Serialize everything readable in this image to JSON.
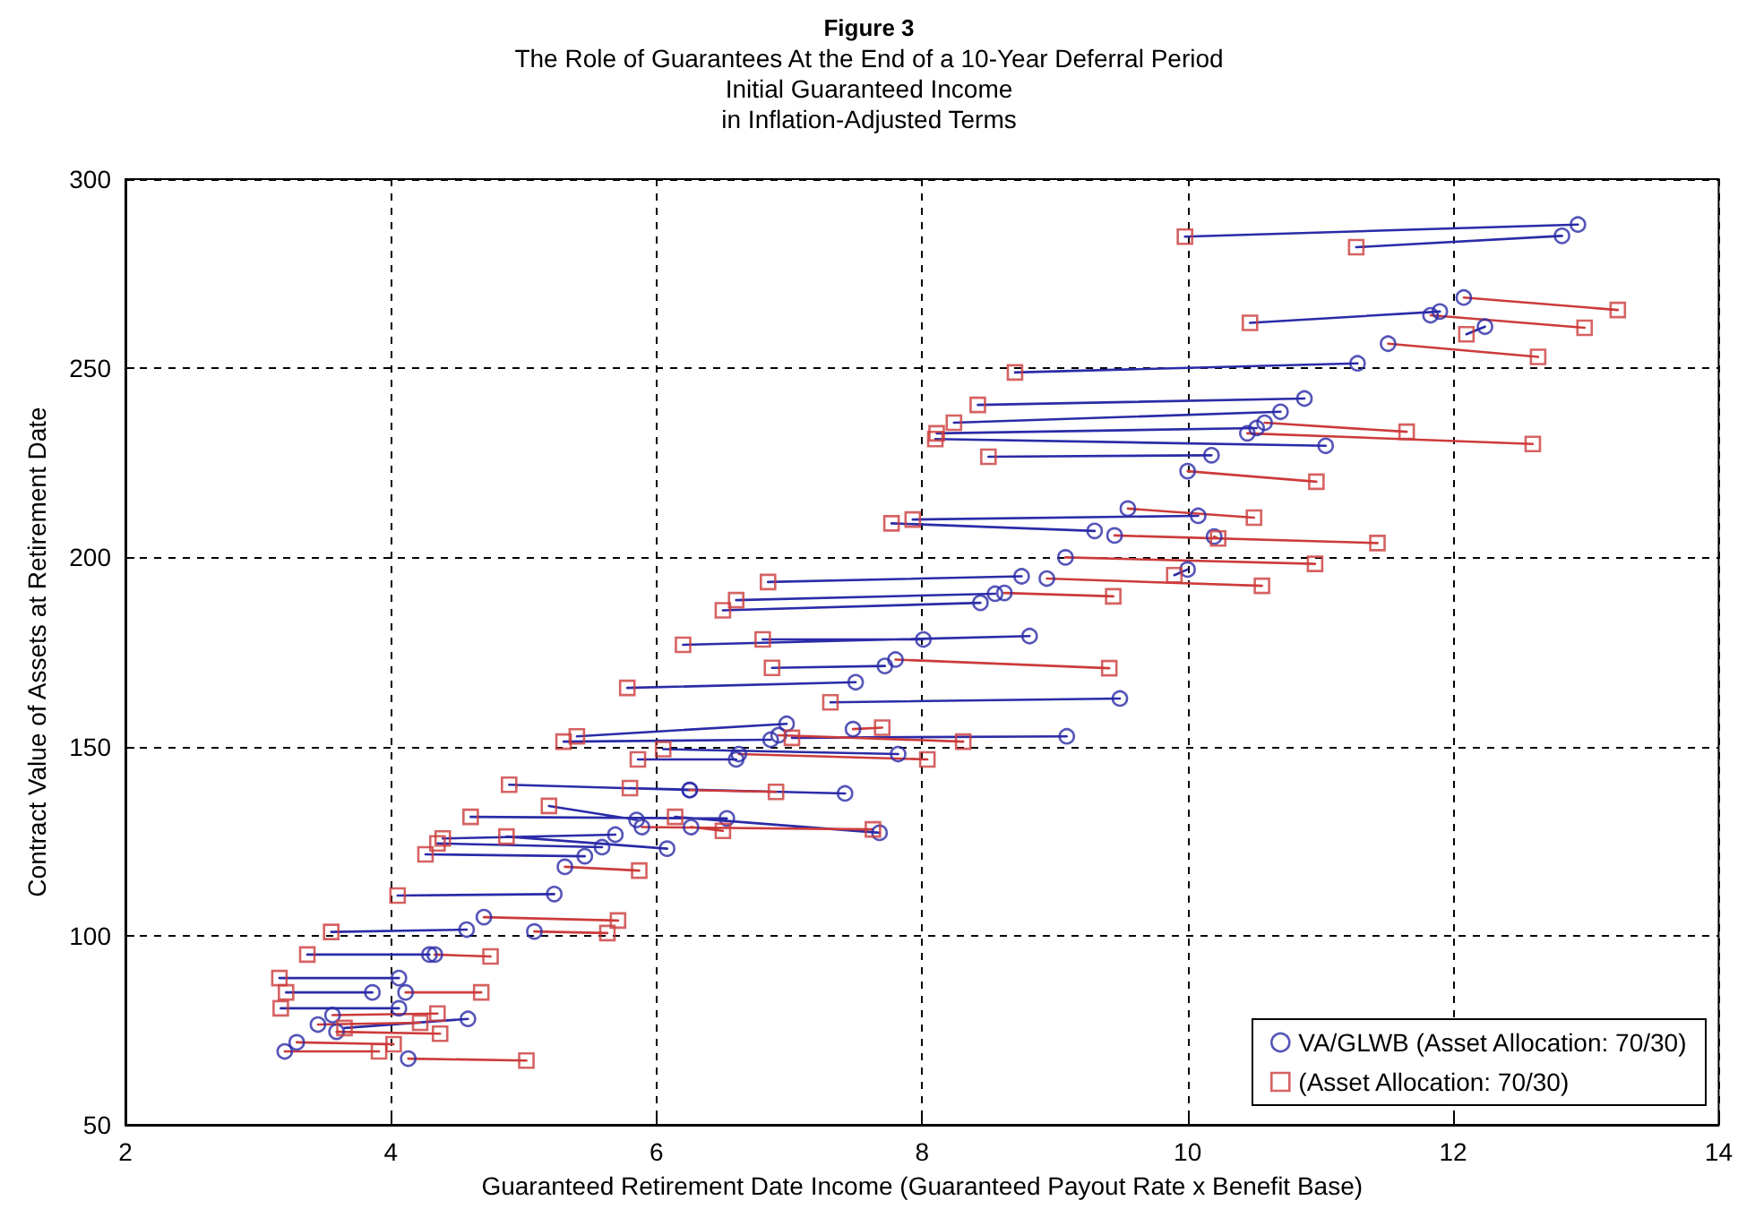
{
  "chart_data": {
    "type": "scatter",
    "title": "Figure 3",
    "subtitle": "The Role of Guarantees At the End of a 10-Year Deferral Period\nInitial Guaranteed Income\nin Inflation-Adjusted Terms",
    "xlabel": "Guaranteed Retirement Date Income (Guaranteed Payout Rate x Benefit Base)",
    "ylabel": "Contract Value of Assets at Retirement Date",
    "xlim": [
      2,
      14
    ],
    "xticks": [
      2,
      4,
      6,
      8,
      10,
      12,
      14
    ],
    "ylim": [
      50,
      300
    ],
    "yticks": [
      50,
      100,
      150,
      200,
      250,
      300
    ],
    "grid": true,
    "legend": "bottom right",
    "line_style": "solid",
    "series": [
      {
        "type": "line",
        "color": "#2b2ba8",
        "marker": "none",
        "x": [
          9.98,
          12.94,
          null,
          11.27,
          12.82,
          null,
          10.47,
          11.9,
          null,
          12.1,
          12.24,
          null,
          8.7,
          11.28,
          null,
          8.42,
          10.88,
          null,
          8.24,
          10.7,
          null,
          8.11,
          10.52,
          null,
          8.1,
          11.04,
          null,
          8.5,
          10.18,
          null,
          7.93,
          10.08,
          null,
          7.77,
          9.3,
          null,
          9.9,
          10.0,
          null,
          6.84,
          8.75,
          null,
          6.6,
          8.55,
          null,
          6.5,
          8.44,
          null,
          6.8,
          8.01,
          null,
          6.2,
          8.81,
          null,
          6.87,
          7.72,
          null,
          5.78,
          7.5,
          null,
          7.31,
          9.49,
          null,
          5.3,
          6.86,
          null,
          5.4,
          6.98,
          null,
          7.02,
          9.09,
          null,
          6.05,
          7.82,
          null,
          5.86,
          6.6,
          null,
          4.89,
          6.25,
          null,
          5.8,
          7.42,
          null,
          5.19,
          5.85,
          null,
          4.6,
          6.53,
          null,
          6.14,
          7.68,
          null,
          4.39,
          5.69,
          null,
          4.87,
          6.08,
          null,
          4.35,
          5.59,
          null,
          4.26,
          5.46,
          null,
          4.05,
          5.23,
          null,
          3.55,
          4.57,
          null,
          3.37,
          4.29,
          null,
          3.16,
          4.06,
          null,
          3.21,
          3.86,
          null,
          3.17,
          4.06,
          null,
          3.65,
          4.58
        ],
        "values": [
          284.8,
          288,
          null,
          282,
          285,
          null,
          262,
          265,
          null,
          259,
          261,
          null,
          248.9,
          251.3,
          null,
          240.3,
          242,
          null,
          235.6,
          238.5,
          null,
          232.8,
          234.2,
          null,
          231.3,
          229.5,
          null,
          226.6,
          227,
          null,
          210,
          211,
          null,
          209,
          207,
          null,
          195.3,
          196.8,
          null,
          193.5,
          195,
          null,
          188.7,
          190.4,
          null,
          186,
          188,
          null,
          178.3,
          178.3,
          null,
          176.9,
          179.2,
          null,
          170.8,
          171.3,
          null,
          165.5,
          167,
          null,
          161.7,
          162.7,
          null,
          151.3,
          151.8,
          null,
          152.7,
          156,
          null,
          152.3,
          152.7,
          null,
          149.3,
          148,
          null,
          146.6,
          146.6,
          null,
          139.9,
          138.5,
          null,
          139,
          137.6,
          null,
          134.3,
          130.6,
          null,
          131.4,
          131,
          null,
          131.4,
          127.2,
          null,
          125.7,
          126.7,
          null,
          126.2,
          123,
          null,
          124.4,
          123.4,
          null,
          121.5,
          121,
          null,
          110.6,
          111,
          null,
          101,
          101.6,
          null,
          95,
          95,
          null,
          88.8,
          88.8,
          null,
          85,
          85,
          null,
          80.8,
          80.8,
          null,
          75.6,
          78
        ]
      },
      {
        "type": "line",
        "color": "#cc3b3b",
        "marker": "none",
        "x": [
          12.08,
          13.24,
          null,
          11.83,
          12.99,
          null,
          11.51,
          12.64,
          null,
          10.58,
          11.65,
          null,
          10.45,
          12.6,
          null,
          10.0,
          10.97,
          null,
          9.55,
          10.5,
          null,
          9.45,
          11.43,
          null,
          10.2,
          10.23,
          null,
          9.08,
          10.96,
          null,
          8.94,
          10.56,
          null,
          8.62,
          9.44,
          null,
          7.8,
          9.41,
          null,
          7.48,
          7.7,
          null,
          6.92,
          8.31,
          null,
          6.62,
          8.04,
          null,
          6.25,
          6.9,
          null,
          5.89,
          7.63,
          null,
          6.26,
          6.5,
          null,
          5.31,
          5.87,
          null,
          4.7,
          5.71,
          null,
          5.08,
          5.63,
          null,
          4.33,
          4.75,
          null,
          4.11,
          4.68,
          null,
          3.56,
          4.35,
          null,
          3.45,
          4.22,
          null,
          3.59,
          4.37,
          null,
          3.29,
          4.02,
          null,
          3.2,
          3.91,
          null,
          4.13,
          5.02
        ],
        "values": [
          268.7,
          265.4,
          null,
          264,
          260.7,
          null,
          256.5,
          253,
          null,
          235.6,
          233.2,
          null,
          232.8,
          230,
          null,
          222.8,
          220,
          null,
          212.9,
          210.5,
          null,
          205.8,
          203.8,
          null,
          205.5,
          205,
          null,
          200,
          198.3,
          null,
          194.4,
          192.5,
          null,
          190.6,
          189.7,
          null,
          173,
          170.7,
          null,
          154.6,
          155,
          null,
          153,
          151.3,
          null,
          148,
          146.6,
          null,
          138.5,
          138,
          null,
          128.7,
          128.1,
          null,
          128.7,
          127.7,
          null,
          118.2,
          117.2,
          null,
          104.9,
          104,
          null,
          101.1,
          100.7,
          null,
          95,
          94.5,
          null,
          85,
          85,
          null,
          79,
          79.4,
          null,
          76.5,
          77,
          null,
          74.6,
          74.1,
          null,
          71.8,
          71.3,
          null,
          69.4,
          69.4,
          null,
          67.5,
          67
        ]
      },
      {
        "name": "VA/GLWB (Asset Allocation: 70/30)",
        "color": "#2b2ba8",
        "marker": "circle",
        "x": [
          12.94,
          12.82,
          12.08,
          11.9,
          11.83,
          12.24,
          11.51,
          11.28,
          10.88,
          10.7,
          10.52,
          11.04,
          10.58,
          10.45,
          10.18,
          10.0,
          9.55,
          10.08,
          9.3,
          9.45,
          10.2,
          9.08,
          10.0,
          8.75,
          8.94,
          8.55,
          8.62,
          8.44,
          8.01,
          8.81,
          7.72,
          7.8,
          7.5,
          9.49,
          6.86,
          6.98,
          7.48,
          9.09,
          6.92,
          7.82,
          6.6,
          6.62,
          6.25,
          6.25,
          7.42,
          5.85,
          6.53,
          5.89,
          6.26,
          7.68,
          5.69,
          6.08,
          5.59,
          5.46,
          5.31,
          5.23,
          4.7,
          5.08,
          4.57,
          4.29,
          4.33,
          4.06,
          3.86,
          4.11,
          4.06,
          3.56,
          4.58,
          3.45,
          3.59,
          3.29,
          3.2,
          4.13
        ],
        "values": [
          288,
          285,
          268.7,
          265,
          264,
          261,
          256.5,
          251.3,
          242,
          238.5,
          234.2,
          229.5,
          235.6,
          232.8,
          227,
          222.8,
          212.9,
          211,
          207,
          205.8,
          205.5,
          200,
          196.8,
          195,
          194.4,
          190.4,
          190.6,
          188,
          178.3,
          179.2,
          171.3,
          173,
          167,
          162.7,
          151.8,
          156,
          154.6,
          152.7,
          153,
          148,
          146.6,
          148,
          138.5,
          138.5,
          137.6,
          130.6,
          131,
          128.7,
          128.7,
          127.2,
          126.7,
          123,
          123.4,
          121,
          118.2,
          111,
          104.9,
          101.1,
          101.6,
          95,
          95,
          88.8,
          85,
          85,
          80.8,
          79,
          78,
          76.5,
          74.6,
          71.8,
          69.4,
          67.5
        ]
      },
      {
        "name": "(Asset Allocation: 70/30)",
        "color": "#cc3b3b",
        "marker": "square",
        "x": [
          9.98,
          11.27,
          13.24,
          10.47,
          12.99,
          12.1,
          12.64,
          8.7,
          8.42,
          8.24,
          8.11,
          8.1,
          11.65,
          12.6,
          8.5,
          10.97,
          10.5,
          7.93,
          7.77,
          11.43,
          10.23,
          10.96,
          9.9,
          6.84,
          10.56,
          6.6,
          9.44,
          6.5,
          6.8,
          6.2,
          6.87,
          9.41,
          5.78,
          7.31,
          5.3,
          5.4,
          7.7,
          7.02,
          8.31,
          6.05,
          5.86,
          8.04,
          4.89,
          6.9,
          5.8,
          5.19,
          4.6,
          7.63,
          6.5,
          6.14,
          4.39,
          4.87,
          4.35,
          4.26,
          5.87,
          4.05,
          5.71,
          5.63,
          3.55,
          3.37,
          4.75,
          3.16,
          3.21,
          4.68,
          3.17,
          4.35,
          3.65,
          4.22,
          4.37,
          4.02,
          3.91,
          5.02
        ],
        "values": [
          284.8,
          282,
          265.4,
          262,
          260.7,
          259,
          253,
          248.9,
          240.3,
          235.6,
          232.8,
          231.3,
          233.2,
          230,
          226.6,
          220,
          210.5,
          210,
          209,
          203.8,
          205,
          198.3,
          195.3,
          193.5,
          192.5,
          188.7,
          189.7,
          186,
          178.3,
          176.9,
          170.8,
          170.7,
          165.5,
          161.7,
          151.3,
          152.7,
          155,
          152.3,
          151.3,
          149.3,
          146.6,
          146.6,
          139.9,
          138,
          139,
          134.3,
          131.4,
          128.1,
          127.7,
          131.4,
          125.7,
          126.2,
          124.4,
          121.5,
          117.2,
          110.6,
          104,
          100.7,
          101,
          95,
          94.5,
          88.8,
          85,
          85,
          80.8,
          79.4,
          75.6,
          77,
          74.1,
          71.3,
          69.4,
          67
        ]
      }
    ]
  }
}
